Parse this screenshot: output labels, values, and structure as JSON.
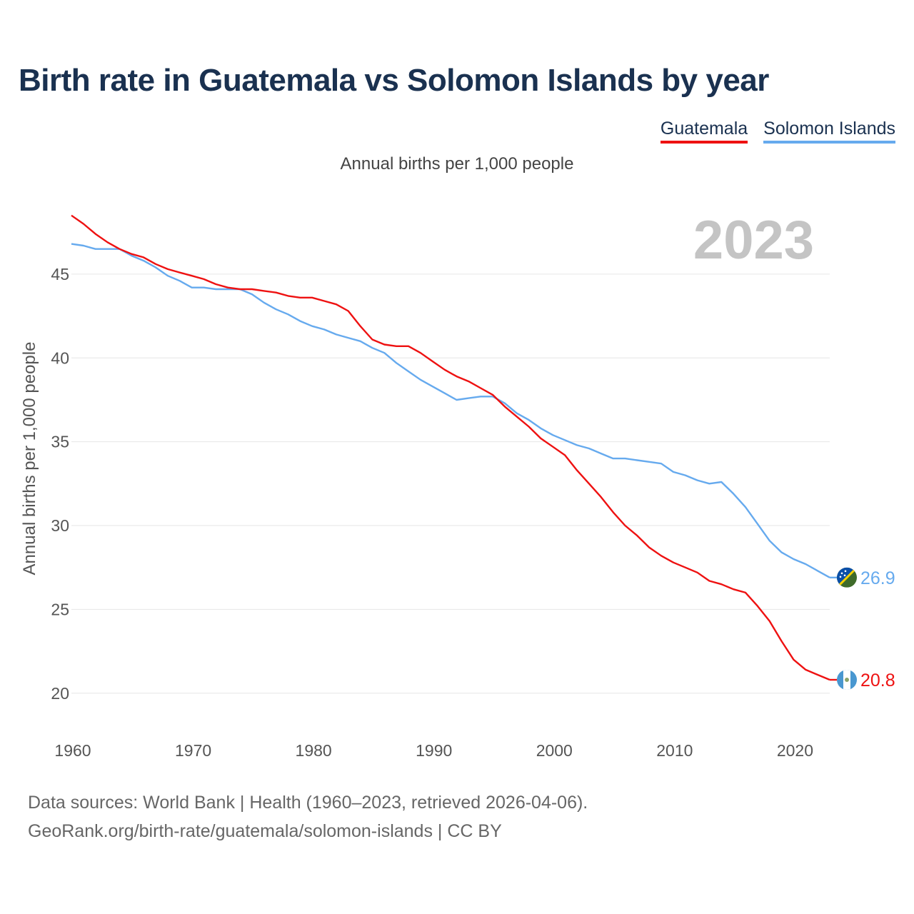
{
  "title": "Birth rate in Guatemala vs Solomon Islands by year",
  "subtitle": "Annual births per 1,000 people",
  "footer": {
    "line1": "Data sources: World Bank | Health (1960–2023, retrieved 2026-04-06).",
    "line2": "GeoRank.org/birth-rate/guatemala/solomon-islands | CC BY"
  },
  "chart_data": {
    "type": "line",
    "title": "Birth rate in Guatemala vs Solomon Islands by year",
    "subtitle": "Annual births per 1,000 people",
    "xlabel": "",
    "ylabel": "Annual births per 1,000 people",
    "year_label": "2023",
    "xlim": [
      1960,
      2023
    ],
    "ylim": [
      18.5,
      49
    ],
    "x_ticks": [
      1960,
      1970,
      1980,
      1990,
      2000,
      2010,
      2020
    ],
    "y_ticks": [
      20,
      25,
      30,
      35,
      40,
      45
    ],
    "grid": true,
    "legend_position": "top-right",
    "x": [
      1960,
      1961,
      1962,
      1963,
      1964,
      1965,
      1966,
      1967,
      1968,
      1969,
      1970,
      1971,
      1972,
      1973,
      1974,
      1975,
      1976,
      1977,
      1978,
      1979,
      1980,
      1981,
      1982,
      1983,
      1984,
      1985,
      1986,
      1987,
      1988,
      1989,
      1990,
      1991,
      1992,
      1993,
      1994,
      1995,
      1996,
      1997,
      1998,
      1999,
      2000,
      2001,
      2002,
      2003,
      2004,
      2005,
      2006,
      2007,
      2008,
      2009,
      2010,
      2011,
      2012,
      2013,
      2014,
      2015,
      2016,
      2017,
      2018,
      2019,
      2020,
      2021,
      2022,
      2023
    ],
    "series": [
      {
        "name": "Guatemala",
        "color": "#ee1111",
        "end_label": "20.8",
        "values": [
          48.5,
          48.0,
          47.4,
          46.9,
          46.5,
          46.2,
          46.0,
          45.6,
          45.3,
          45.1,
          44.9,
          44.7,
          44.4,
          44.2,
          44.1,
          44.1,
          44.0,
          43.9,
          43.7,
          43.6,
          43.6,
          43.4,
          43.2,
          42.8,
          41.9,
          41.1,
          40.8,
          40.7,
          40.7,
          40.3,
          39.8,
          39.3,
          38.9,
          38.6,
          38.2,
          37.8,
          37.1,
          36.5,
          35.9,
          35.2,
          34.7,
          34.2,
          33.3,
          32.5,
          31.7,
          30.8,
          30.0,
          29.4,
          28.7,
          28.2,
          27.8,
          27.5,
          27.2,
          26.7,
          26.5,
          26.2,
          26.0,
          25.2,
          24.3,
          23.1,
          22.0,
          21.4,
          21.1,
          20.8
        ]
      },
      {
        "name": "Solomon Islands",
        "color": "#66aaee",
        "end_label": "26.9",
        "values": [
          46.8,
          46.7,
          46.5,
          46.5,
          46.5,
          46.1,
          45.8,
          45.4,
          44.9,
          44.6,
          44.2,
          44.2,
          44.1,
          44.1,
          44.1,
          43.8,
          43.3,
          42.9,
          42.6,
          42.2,
          41.9,
          41.7,
          41.4,
          41.2,
          41.0,
          40.6,
          40.3,
          39.7,
          39.2,
          38.7,
          38.3,
          37.9,
          37.5,
          37.6,
          37.7,
          37.7,
          37.3,
          36.7,
          36.3,
          35.8,
          35.4,
          35.1,
          34.8,
          34.6,
          34.3,
          34.0,
          34.0,
          33.9,
          33.8,
          33.7,
          33.2,
          33.0,
          32.7,
          32.5,
          32.6,
          31.9,
          31.1,
          30.1,
          29.1,
          28.4,
          28.0,
          27.7,
          27.3,
          26.9
        ]
      }
    ]
  }
}
